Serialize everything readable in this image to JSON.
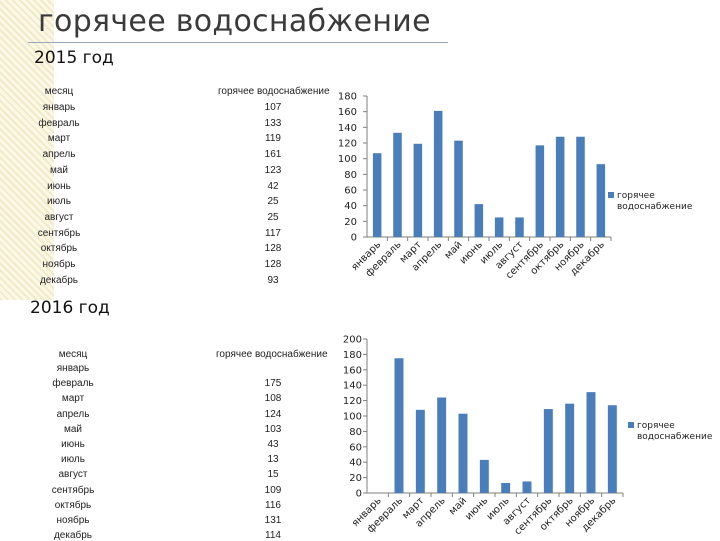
{
  "page": {
    "title": "горячее водоснабжение",
    "year_2015": "2015 год",
    "year_2016": "2016 год"
  },
  "table_2015": {
    "header_month": "месяц",
    "header_value": "горячее водоснабжение",
    "rows": [
      {
        "month": "январь",
        "value": "107"
      },
      {
        "month": "февраль",
        "value": "133"
      },
      {
        "month": "март",
        "value": "119"
      },
      {
        "month": "апрель",
        "value": "161"
      },
      {
        "month": "май",
        "value": "123"
      },
      {
        "month": "июнь",
        "value": "42"
      },
      {
        "month": "июль",
        "value": "25"
      },
      {
        "month": "август",
        "value": "25"
      },
      {
        "month": "сентябрь",
        "value": "117"
      },
      {
        "month": "октябрь",
        "value": "128"
      },
      {
        "month": "ноябрь",
        "value": "128"
      },
      {
        "month": "декабрь",
        "value": "93"
      }
    ]
  },
  "table_2016": {
    "header_month": "месяц",
    "header_value": "горячее водоснабжение",
    "rows": [
      {
        "month": "январь",
        "value": ""
      },
      {
        "month": "февраль",
        "value": "175"
      },
      {
        "month": "март",
        "value": "108"
      },
      {
        "month": "апрель",
        "value": "124"
      },
      {
        "month": "май",
        "value": "103"
      },
      {
        "month": "июнь",
        "value": "43"
      },
      {
        "month": "июль",
        "value": "13"
      },
      {
        "month": "август",
        "value": "15"
      },
      {
        "month": "сентябрь",
        "value": "109"
      },
      {
        "month": "октябрь",
        "value": "116"
      },
      {
        "month": "ноябрь",
        "value": "131"
      },
      {
        "month": "декабрь",
        "value": "114"
      }
    ]
  },
  "chart_data": [
    {
      "type": "bar",
      "categories": [
        "январь",
        "февраль",
        "март",
        "апрель",
        "май",
        "июнь",
        "июль",
        "август",
        "сентябрь",
        "октябрь",
        "ноябрь",
        "декабрь"
      ],
      "series": [
        {
          "name": "горячее водоснабжение",
          "values": [
            107,
            133,
            119,
            161,
            123,
            42,
            25,
            25,
            117,
            128,
            128,
            93
          ]
        }
      ],
      "ylim": [
        0,
        180
      ],
      "yticks": [
        0,
        20,
        40,
        60,
        80,
        100,
        120,
        140,
        160,
        180
      ],
      "legend": "right",
      "legend_label_lines": [
        "горячее",
        "водоснабжение"
      ],
      "bar_color": "#4a7ebb",
      "grid": false
    },
    {
      "type": "bar",
      "categories": [
        "январь",
        "февраль",
        "март",
        "апрель",
        "май",
        "июнь",
        "июль",
        "август",
        "сентябрь",
        "октябрь",
        "ноябрь",
        "декабрь"
      ],
      "series": [
        {
          "name": "горячее водоснабжение",
          "values": [
            0,
            175,
            108,
            124,
            103,
            43,
            13,
            15,
            109,
            116,
            131,
            114
          ]
        }
      ],
      "ylim": [
        0,
        200
      ],
      "yticks": [
        0,
        20,
        40,
        60,
        80,
        100,
        120,
        140,
        160,
        180,
        200
      ],
      "legend": "right",
      "legend_label_lines": [
        "горячее",
        "водоснабжение"
      ],
      "bar_color": "#4a7ebb",
      "grid": false
    }
  ]
}
